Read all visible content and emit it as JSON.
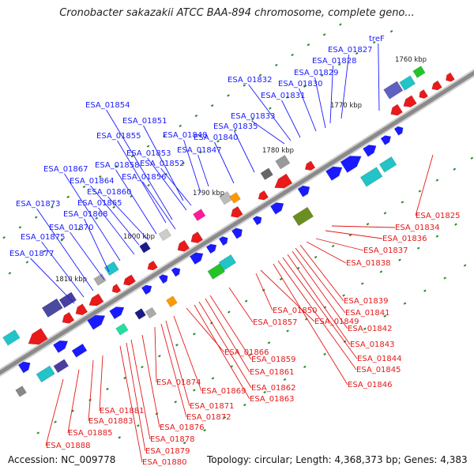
{
  "title": "Cronobacter sakazakii ATCC BAA-894 chromosome, complete geno...",
  "footer": {
    "accession": "Accession: NC_009778",
    "summary": "Topology: circular; Length: 4,368,373 bp; Genes: 4,383"
  },
  "scale_labels": [
    "1760 kbp",
    "1770 kbp",
    "1780 kbp",
    "1790 kbp",
    "1800 kbp",
    "1810 kbp"
  ],
  "top_genes": [
    "treF",
    "ESA_01827",
    "ESA_01828",
    "ESA_01829",
    "ESA_01830",
    "ESA_01831",
    "ESA_01832",
    "ESA_01833",
    "ESA_01835",
    "ESA_01840",
    "ESA_01847",
    "ESA_01848",
    "ESA_01851",
    "ESA_01852",
    "ESA_01853",
    "ESA_01854",
    "ESA_01855",
    "ESA_01856",
    "ESA_01858",
    "ESA_01860",
    "ESA_01864",
    "ESA_01865",
    "ESA_01867",
    "ESA_01868",
    "ESA_01870",
    "ESA_01873",
    "ESA_01875",
    "ESA_01877"
  ],
  "bottom_genes": [
    "ESA_01825",
    "ESA_01834",
    "ESA_01836",
    "ESA_01837",
    "ESA_01838",
    "ESA_01839",
    "ESA_01841",
    "ESA_01842",
    "ESA_01843",
    "ESA_01844",
    "ESA_01845",
    "ESA_01846",
    "ESA_01849",
    "ESA_01850",
    "ESA_01857",
    "ESA_01859",
    "ESA_01861",
    "ESA_01862",
    "ESA_01863",
    "ESA_01866",
    "ESA_01869",
    "ESA_01871",
    "ESA_01872",
    "ESA_01874",
    "ESA_01876",
    "ESA_01878",
    "ESA_01879",
    "ESA_01880",
    "ESA_01881",
    "ESA_01883",
    "ESA_01885",
    "ESA_01888"
  ],
  "colors": {
    "forward_label": "#1a1aff",
    "reverse_label": "#e31a1a",
    "backbone": "#8a8a8a",
    "tick": "#2a8a2a"
  }
}
